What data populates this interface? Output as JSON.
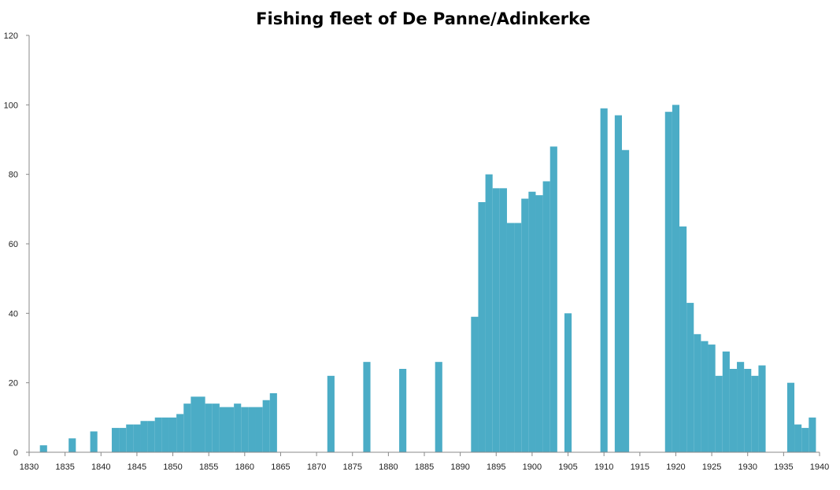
{
  "chart_data": {
    "type": "bar",
    "title": "Fishing fleet of De Panne/Adinkerke",
    "xlabel": "",
    "ylabel": "",
    "xlim": [
      1830,
      1940
    ],
    "ylim": [
      0,
      120
    ],
    "x_ticks": [
      "1830",
      "1835",
      "1840",
      "1845",
      "1850",
      "1855",
      "1860",
      "1865",
      "1870",
      "1875",
      "1880",
      "1885",
      "1890",
      "1895",
      "1900",
      "1905",
      "1910",
      "1915",
      "1920",
      "1925",
      "1930",
      "1935",
      "1940"
    ],
    "y_ticks": [
      "0",
      "20",
      "40",
      "60",
      "80",
      "100",
      "120"
    ],
    "grid": false,
    "legend": "none",
    "bar_color": "#4BACC6",
    "series": [
      {
        "x": [
          1832,
          1836,
          1839,
          1842,
          1843,
          1844,
          1845,
          1846,
          1847,
          1848,
          1849,
          1850,
          1851,
          1852,
          1853,
          1854,
          1855,
          1856,
          1857,
          1858,
          1859,
          1860,
          1861,
          1862,
          1863,
          1864,
          1872,
          1877,
          1882,
          1887,
          1892,
          1893,
          1894,
          1895,
          1896,
          1897,
          1898,
          1899,
          1900,
          1901,
          1902,
          1903,
          1905,
          1910,
          1912,
          1913,
          1919,
          1920,
          1921,
          1922,
          1923,
          1924,
          1925,
          1926,
          1927,
          1928,
          1929,
          1930,
          1931,
          1932,
          1936,
          1937,
          1938,
          1939
        ],
        "values": [
          2,
          4,
          6,
          7,
          7,
          8,
          8,
          9,
          9,
          10,
          10,
          10,
          11,
          14,
          16,
          16,
          14,
          14,
          13,
          13,
          14,
          13,
          13,
          13,
          15,
          17,
          22,
          26,
          24,
          26,
          39,
          72,
          80,
          76,
          76,
          66,
          66,
          73,
          75,
          74,
          78,
          88,
          40,
          99,
          97,
          87,
          98,
          100,
          65,
          43,
          34,
          32,
          31,
          22,
          29,
          24,
          26,
          24,
          22,
          25,
          20,
          8,
          7,
          10
        ]
      }
    ]
  }
}
